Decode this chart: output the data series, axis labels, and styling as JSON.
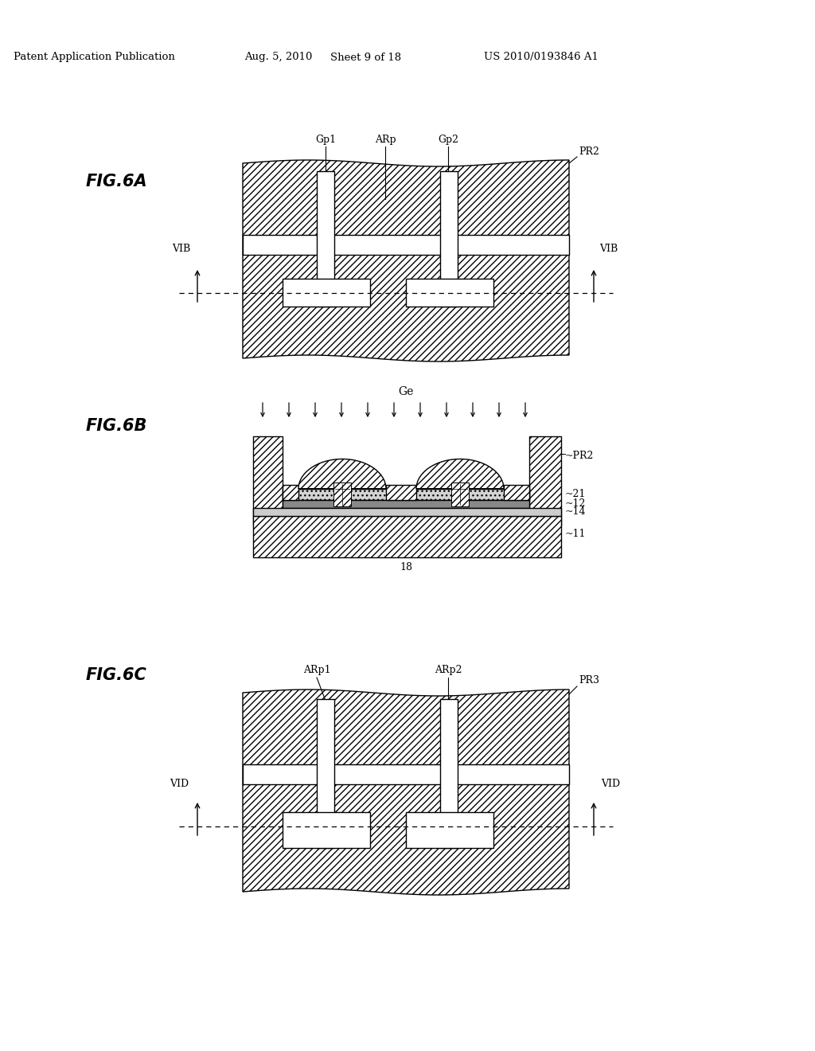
{
  "bg_color": "#ffffff",
  "header_text1": "Patent Application Publication",
  "header_text2": "Aug. 5, 2010",
  "header_text3": "Sheet 9 of 18",
  "header_text4": "US 2010/0193846 A1",
  "fig6a_label": "FIG.6A",
  "fig6b_label": "FIG.6B",
  "fig6c_label": "FIG.6C"
}
